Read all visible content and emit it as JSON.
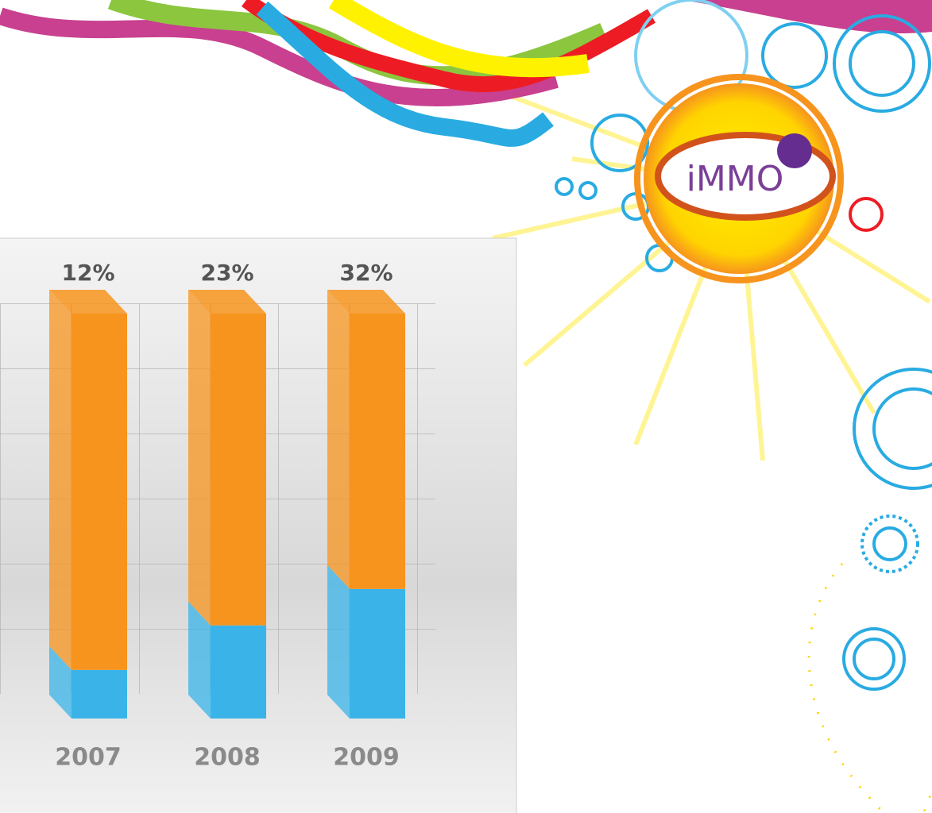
{
  "chart_data": {
    "type": "bar",
    "stacked": true,
    "categories": [
      "2007",
      "2008",
      "2009"
    ],
    "series": [
      {
        "color": "#3ab4e8",
        "values": [
          12,
          23,
          32
        ],
        "value_labels": [
          "12%",
          "23%",
          "32%"
        ]
      },
      {
        "color": "#f7941d",
        "values": [
          88,
          77,
          68
        ]
      }
    ],
    "ylim": [
      0,
      100
    ]
  },
  "logo": "iMMO"
}
